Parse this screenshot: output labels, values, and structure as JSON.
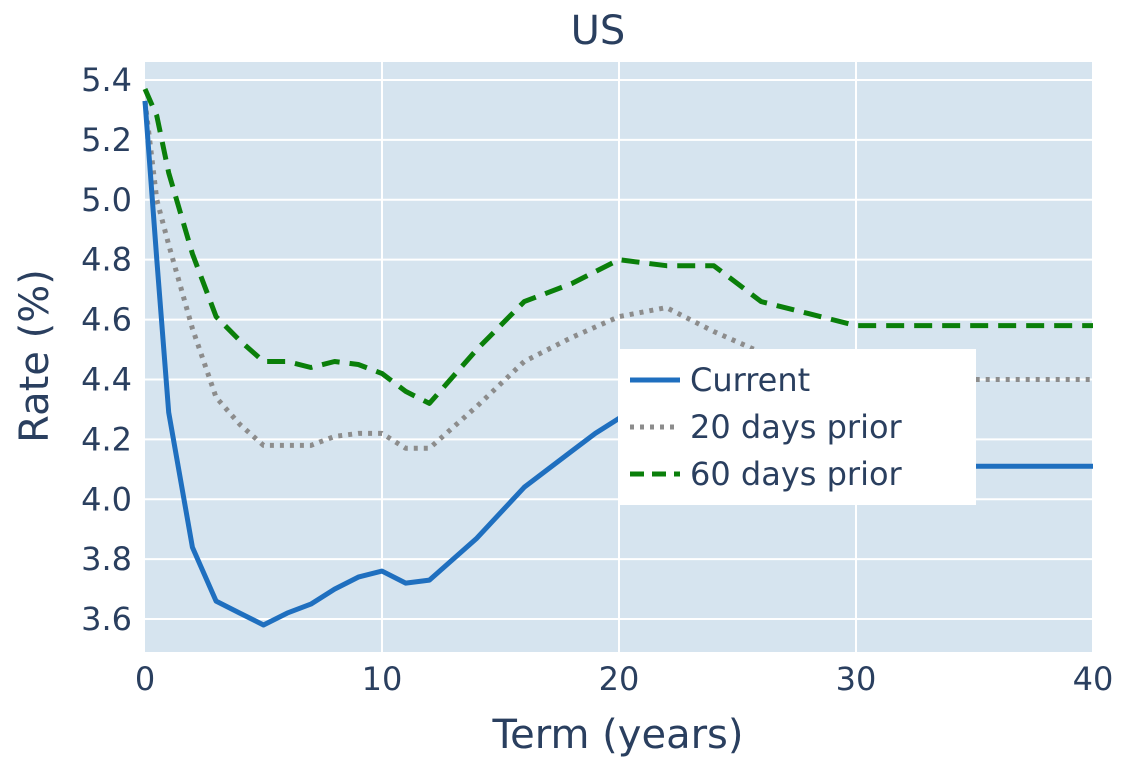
{
  "chart_data": {
    "type": "line",
    "title": "US",
    "xlabel": "Term (years)",
    "ylabel": "Rate (%)",
    "xlim": [
      0,
      40
    ],
    "ylim": [
      3.49,
      5.46
    ],
    "xticks": [
      0,
      10,
      20,
      30,
      40
    ],
    "xtick_labels": [
      "0",
      "10",
      "20",
      "30",
      "40"
    ],
    "yticks": [
      3.6,
      3.8,
      4.0,
      4.2,
      4.4,
      4.6,
      4.8,
      5.0,
      5.2,
      5.4
    ],
    "ytick_labels": [
      "3.6",
      "3.8",
      "4.0",
      "4.2",
      "4.4",
      "4.6",
      "4.8",
      "5.0",
      "5.2",
      "5.4"
    ],
    "grid": true,
    "legend_position": "center-right",
    "plot_background": "#d6e4ef",
    "series": [
      {
        "name": "Current",
        "color": "#1f6fbf",
        "dash": "solid",
        "x": [
          0,
          0.5,
          1,
          2,
          3,
          4,
          5,
          6,
          7,
          8,
          9,
          10,
          11,
          12,
          14,
          16,
          18,
          19,
          20,
          22,
          24,
          26,
          28,
          30,
          35,
          40
        ],
        "y": [
          5.33,
          4.8,
          4.29,
          3.84,
          3.66,
          3.62,
          3.58,
          3.62,
          3.65,
          3.7,
          3.74,
          3.76,
          3.72,
          3.73,
          3.87,
          4.04,
          4.16,
          4.22,
          4.27,
          4.3,
          4.27,
          4.2,
          4.14,
          4.11,
          4.11,
          4.11
        ]
      },
      {
        "name": "20 days prior",
        "color": "#8c8c8c",
        "dash": "dotted",
        "x": [
          0,
          0.5,
          1,
          2,
          3,
          4,
          5,
          6,
          7,
          8,
          9,
          10,
          11,
          12,
          14,
          16,
          18,
          20,
          22,
          24,
          26,
          28,
          30,
          35,
          40
        ],
        "y": [
          5.33,
          5.0,
          4.85,
          4.57,
          4.34,
          4.25,
          4.18,
          4.18,
          4.18,
          4.21,
          4.22,
          4.22,
          4.17,
          4.17,
          4.31,
          4.46,
          4.54,
          4.61,
          4.64,
          4.56,
          4.49,
          4.44,
          4.41,
          4.4,
          4.4
        ]
      },
      {
        "name": "60 days prior",
        "color": "#0a7f0a",
        "dash": "dashed",
        "x": [
          0,
          0.5,
          1,
          2,
          3,
          4,
          5,
          6,
          7,
          8,
          9,
          10,
          11,
          12,
          14,
          16,
          18,
          20,
          22,
          24,
          26,
          28,
          30,
          35,
          40
        ],
        "y": [
          5.37,
          5.28,
          5.09,
          4.82,
          4.61,
          4.53,
          4.46,
          4.46,
          4.44,
          4.46,
          4.45,
          4.42,
          4.36,
          4.32,
          4.5,
          4.66,
          4.72,
          4.8,
          4.78,
          4.78,
          4.66,
          4.62,
          4.58,
          4.58,
          4.58
        ]
      }
    ]
  }
}
